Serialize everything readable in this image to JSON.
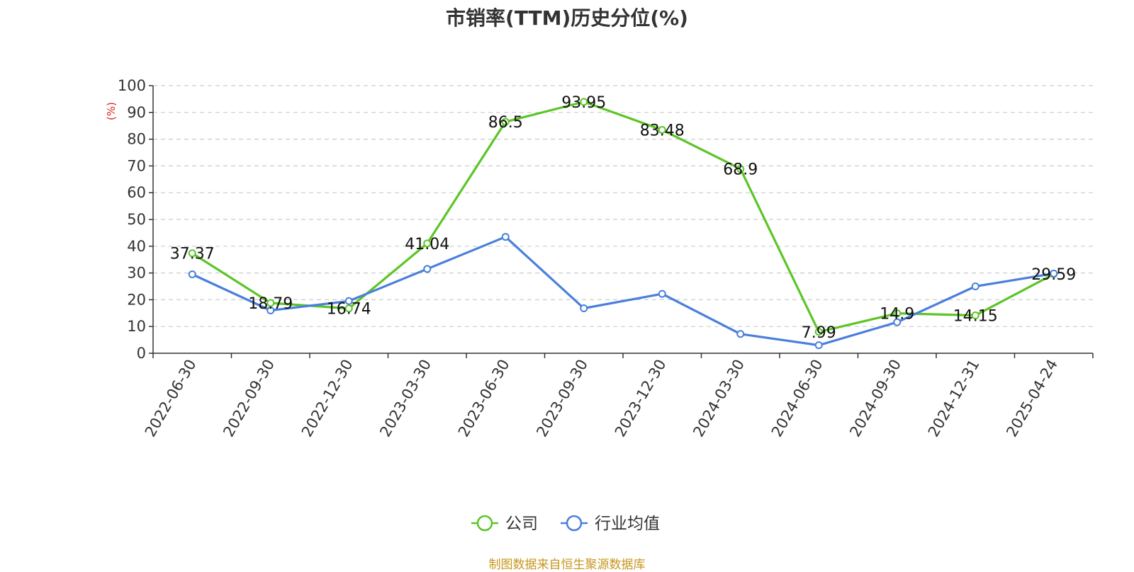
{
  "chart_data": {
    "type": "line",
    "title": "市销率(TTM)历史分位(%)",
    "ylabel": "(%)",
    "ylim": [
      0,
      100
    ],
    "yticks": [
      0,
      10,
      20,
      30,
      40,
      50,
      60,
      70,
      80,
      90,
      100
    ],
    "grid": true,
    "legend_position": "bottom",
    "categories": [
      "2022-06-30",
      "2022-09-30",
      "2022-12-30",
      "2023-03-30",
      "2023-06-30",
      "2023-09-30",
      "2023-12-30",
      "2024-03-30",
      "2024-06-30",
      "2024-09-30",
      "2024-12-31",
      "2025-04-24"
    ],
    "series": [
      {
        "name": "公司",
        "color": "#5cc527",
        "show_labels": true,
        "values": [
          37.37,
          18.79,
          16.74,
          41.04,
          86.5,
          93.95,
          83.48,
          68.9,
          7.99,
          14.9,
          14.15,
          29.59
        ]
      },
      {
        "name": "行业均值",
        "color": "#4a7fdc",
        "show_labels": false,
        "values": [
          29.5,
          16,
          19.5,
          31.5,
          43.5,
          16.8,
          22.2,
          7.2,
          3,
          11.6,
          25,
          29.8
        ]
      }
    ]
  },
  "source_note": "制图数据来自恒生聚源数据库"
}
